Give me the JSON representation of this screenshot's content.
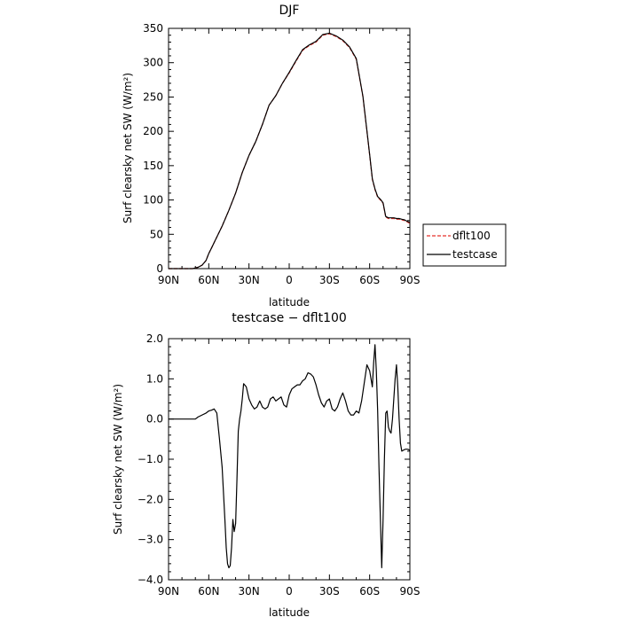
{
  "chart_data": [
    {
      "type": "line",
      "title": "DJF",
      "xlabel": "latitude",
      "ylabel": "Surf clearsky net SW (W/m²)",
      "xlim": [
        90,
        -90
      ],
      "ylim": [
        0,
        350
      ],
      "xticks": [
        90,
        60,
        30,
        0,
        -30,
        -60,
        -90
      ],
      "xtick_labels": [
        "90N",
        "60N",
        "30N",
        "0",
        "30S",
        "60S",
        "90S"
      ],
      "yticks": [
        0,
        50,
        100,
        150,
        200,
        250,
        300,
        350
      ],
      "ytick_labels": [
        "0",
        "50",
        "100",
        "150",
        "200",
        "250",
        "300",
        "350"
      ],
      "legend": {
        "placement": "right",
        "entries": [
          "dflt100",
          "testcase"
        ]
      },
      "grid": false,
      "x": [
        90,
        80,
        75,
        72,
        70,
        68,
        65,
        62,
        60,
        58,
        55,
        50,
        45,
        40,
        35,
        30,
        25,
        20,
        15,
        10,
        5,
        0,
        -5,
        -10,
        -15,
        -20,
        -25,
        -30,
        -35,
        -40,
        -45,
        -50,
        -55,
        -58,
        -60,
        -62,
        -64,
        -66,
        -68,
        -70,
        -72,
        -74,
        -76,
        -78,
        -80,
        -82,
        -84,
        -86,
        -88,
        -90
      ],
      "series": [
        {
          "name": "dflt100",
          "color": "#e8312b",
          "dash": "dashed",
          "values": [
            0,
            0,
            0,
            0,
            1,
            2,
            5,
            12,
            22,
            30,
            42,
            62,
            85,
            110,
            140,
            165,
            185,
            210,
            238,
            252,
            270,
            285,
            302,
            318,
            325,
            330,
            340,
            342,
            338,
            332,
            322,
            305,
            250,
            200,
            165,
            130,
            115,
            104,
            100,
            95,
            75,
            73,
            73,
            73,
            72,
            72,
            71,
            70,
            68,
            66
          ]
        },
        {
          "name": "testcase",
          "color": "#000000",
          "dash": "solid",
          "values": [
            0,
            0,
            0,
            0,
            1,
            2,
            5,
            12,
            22,
            30,
            42,
            62,
            85,
            110,
            140,
            165,
            185,
            210,
            238,
            252,
            270,
            286,
            303,
            319,
            326,
            331,
            341,
            343,
            339,
            333,
            323,
            306,
            251,
            201,
            166,
            131,
            116,
            105,
            101,
            96,
            76,
            74,
            74,
            74,
            73,
            73,
            72,
            71,
            69,
            67
          ]
        }
      ]
    },
    {
      "type": "line",
      "title": "testcase − dflt100",
      "xlabel": "latitude",
      "ylabel": "Surf clearsky net SW (W/m²)",
      "xlim": [
        90,
        -90
      ],
      "ylim": [
        -4.0,
        2.0
      ],
      "xticks": [
        90,
        60,
        30,
        0,
        -30,
        -60,
        -90
      ],
      "xtick_labels": [
        "90N",
        "60N",
        "30N",
        "0",
        "30S",
        "60S",
        "90S"
      ],
      "yticks": [
        -4,
        -3,
        -2,
        -1,
        0,
        1,
        2
      ],
      "ytick_labels": [
        "−4.0",
        "−3.0",
        "−2.0",
        "−1.0",
        "0.0",
        "1.0",
        "2.0"
      ],
      "grid": false,
      "series": [
        {
          "name": "testcase",
          "color": "#000000",
          "x": [
            90,
            78,
            72,
            70,
            68,
            65,
            62,
            60,
            58,
            56,
            54,
            52,
            50,
            48,
            47,
            46,
            45,
            44,
            43,
            42,
            41,
            40,
            39,
            38,
            37,
            36,
            35,
            34,
            32,
            30,
            28,
            26,
            24,
            22,
            20,
            18,
            16,
            14,
            12,
            10,
            8,
            6,
            4,
            2,
            0,
            -2,
            -4,
            -6,
            -8,
            -10,
            -12,
            -14,
            -16,
            -18,
            -20,
            -22,
            -24,
            -26,
            -28,
            -30,
            -32,
            -34,
            -36,
            -38,
            -40,
            -42,
            -44,
            -46,
            -48,
            -50,
            -52,
            -54,
            -56,
            -58,
            -60,
            -62,
            -63,
            -64,
            -65,
            -66,
            -67,
            -68,
            -69,
            -70,
            -71,
            -72,
            -73,
            -74,
            -75,
            -76,
            -77,
            -78,
            -79,
            -80,
            -81,
            -82,
            -83,
            -84,
            -85,
            -86,
            -87,
            -88,
            -89,
            -90
          ],
          "values": [
            0.0,
            0.0,
            0.0,
            0.0,
            0.05,
            0.1,
            0.15,
            0.2,
            0.22,
            0.25,
            0.15,
            -0.5,
            -1.2,
            -2.5,
            -3.2,
            -3.6,
            -3.7,
            -3.65,
            -3.2,
            -2.5,
            -2.8,
            -2.6,
            -1.5,
            -0.3,
            0.0,
            0.2,
            0.5,
            0.88,
            0.8,
            0.5,
            0.35,
            0.25,
            0.3,
            0.45,
            0.3,
            0.25,
            0.3,
            0.5,
            0.55,
            0.45,
            0.5,
            0.55,
            0.35,
            0.3,
            0.6,
            0.75,
            0.8,
            0.85,
            0.85,
            0.95,
            1.0,
            1.15,
            1.12,
            1.05,
            0.85,
            0.6,
            0.4,
            0.3,
            0.45,
            0.5,
            0.25,
            0.2,
            0.3,
            0.5,
            0.65,
            0.45,
            0.2,
            0.1,
            0.1,
            0.2,
            0.15,
            0.45,
            0.9,
            1.35,
            1.2,
            0.8,
            1.4,
            1.85,
            1.2,
            0.2,
            -1.2,
            -2.5,
            -3.7,
            -2.5,
            -1.0,
            0.15,
            0.2,
            -0.2,
            -0.3,
            -0.35,
            0.0,
            0.5,
            1.0,
            1.35,
            0.8,
            0.0,
            -0.6,
            -0.8,
            -0.78,
            -0.76,
            -0.75,
            -0.75,
            -0.76,
            -0.78
          ]
        }
      ]
    }
  ]
}
